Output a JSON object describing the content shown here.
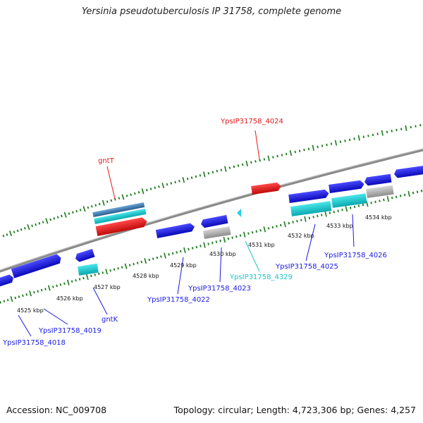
{
  "title": "Yersinia pseudotuberculosis IP 31758, complete genome",
  "footer": {
    "accession": "Accession: NC_009708",
    "topology": "Topology: circular; Length: 4,723,306 bp; Genes: 4,257"
  },
  "colors": {
    "blue": "#1a1ae6",
    "red": "#e61a1a",
    "cyan": "#1ac4cc",
    "gray": "#b3b3b3",
    "steel": "#4a86b8",
    "dots": "#1a7a1a",
    "backbone": "#8a8a8a"
  },
  "tick_labels": [
    "4525 kbp",
    "4526 kbp",
    "4527 kbp",
    "4528 kbp",
    "4529 kbp",
    "4530 kbp",
    "4531 kbp",
    "4532 kbp",
    "4533 kbp",
    "4534 kbp"
  ],
  "gene_labels": [
    {
      "text": "YpsIP31758_4024",
      "color": "red"
    },
    {
      "text": "gntT",
      "color": "red"
    },
    {
      "text": "YpsIP31758_4026",
      "color": "blue"
    },
    {
      "text": "YpsIP31758_4025",
      "color": "blue"
    },
    {
      "text": "YpsIP31758_4329",
      "color": "cyan"
    },
    {
      "text": "YpsIP31758_4023",
      "color": "blue"
    },
    {
      "text": "YpsIP31758_4022",
      "color": "blue"
    },
    {
      "text": "gntK",
      "color": "blue"
    },
    {
      "text": "YpsIP31758_4019",
      "color": "blue"
    },
    {
      "text": "YpsIP31758_4018",
      "color": "blue"
    }
  ]
}
